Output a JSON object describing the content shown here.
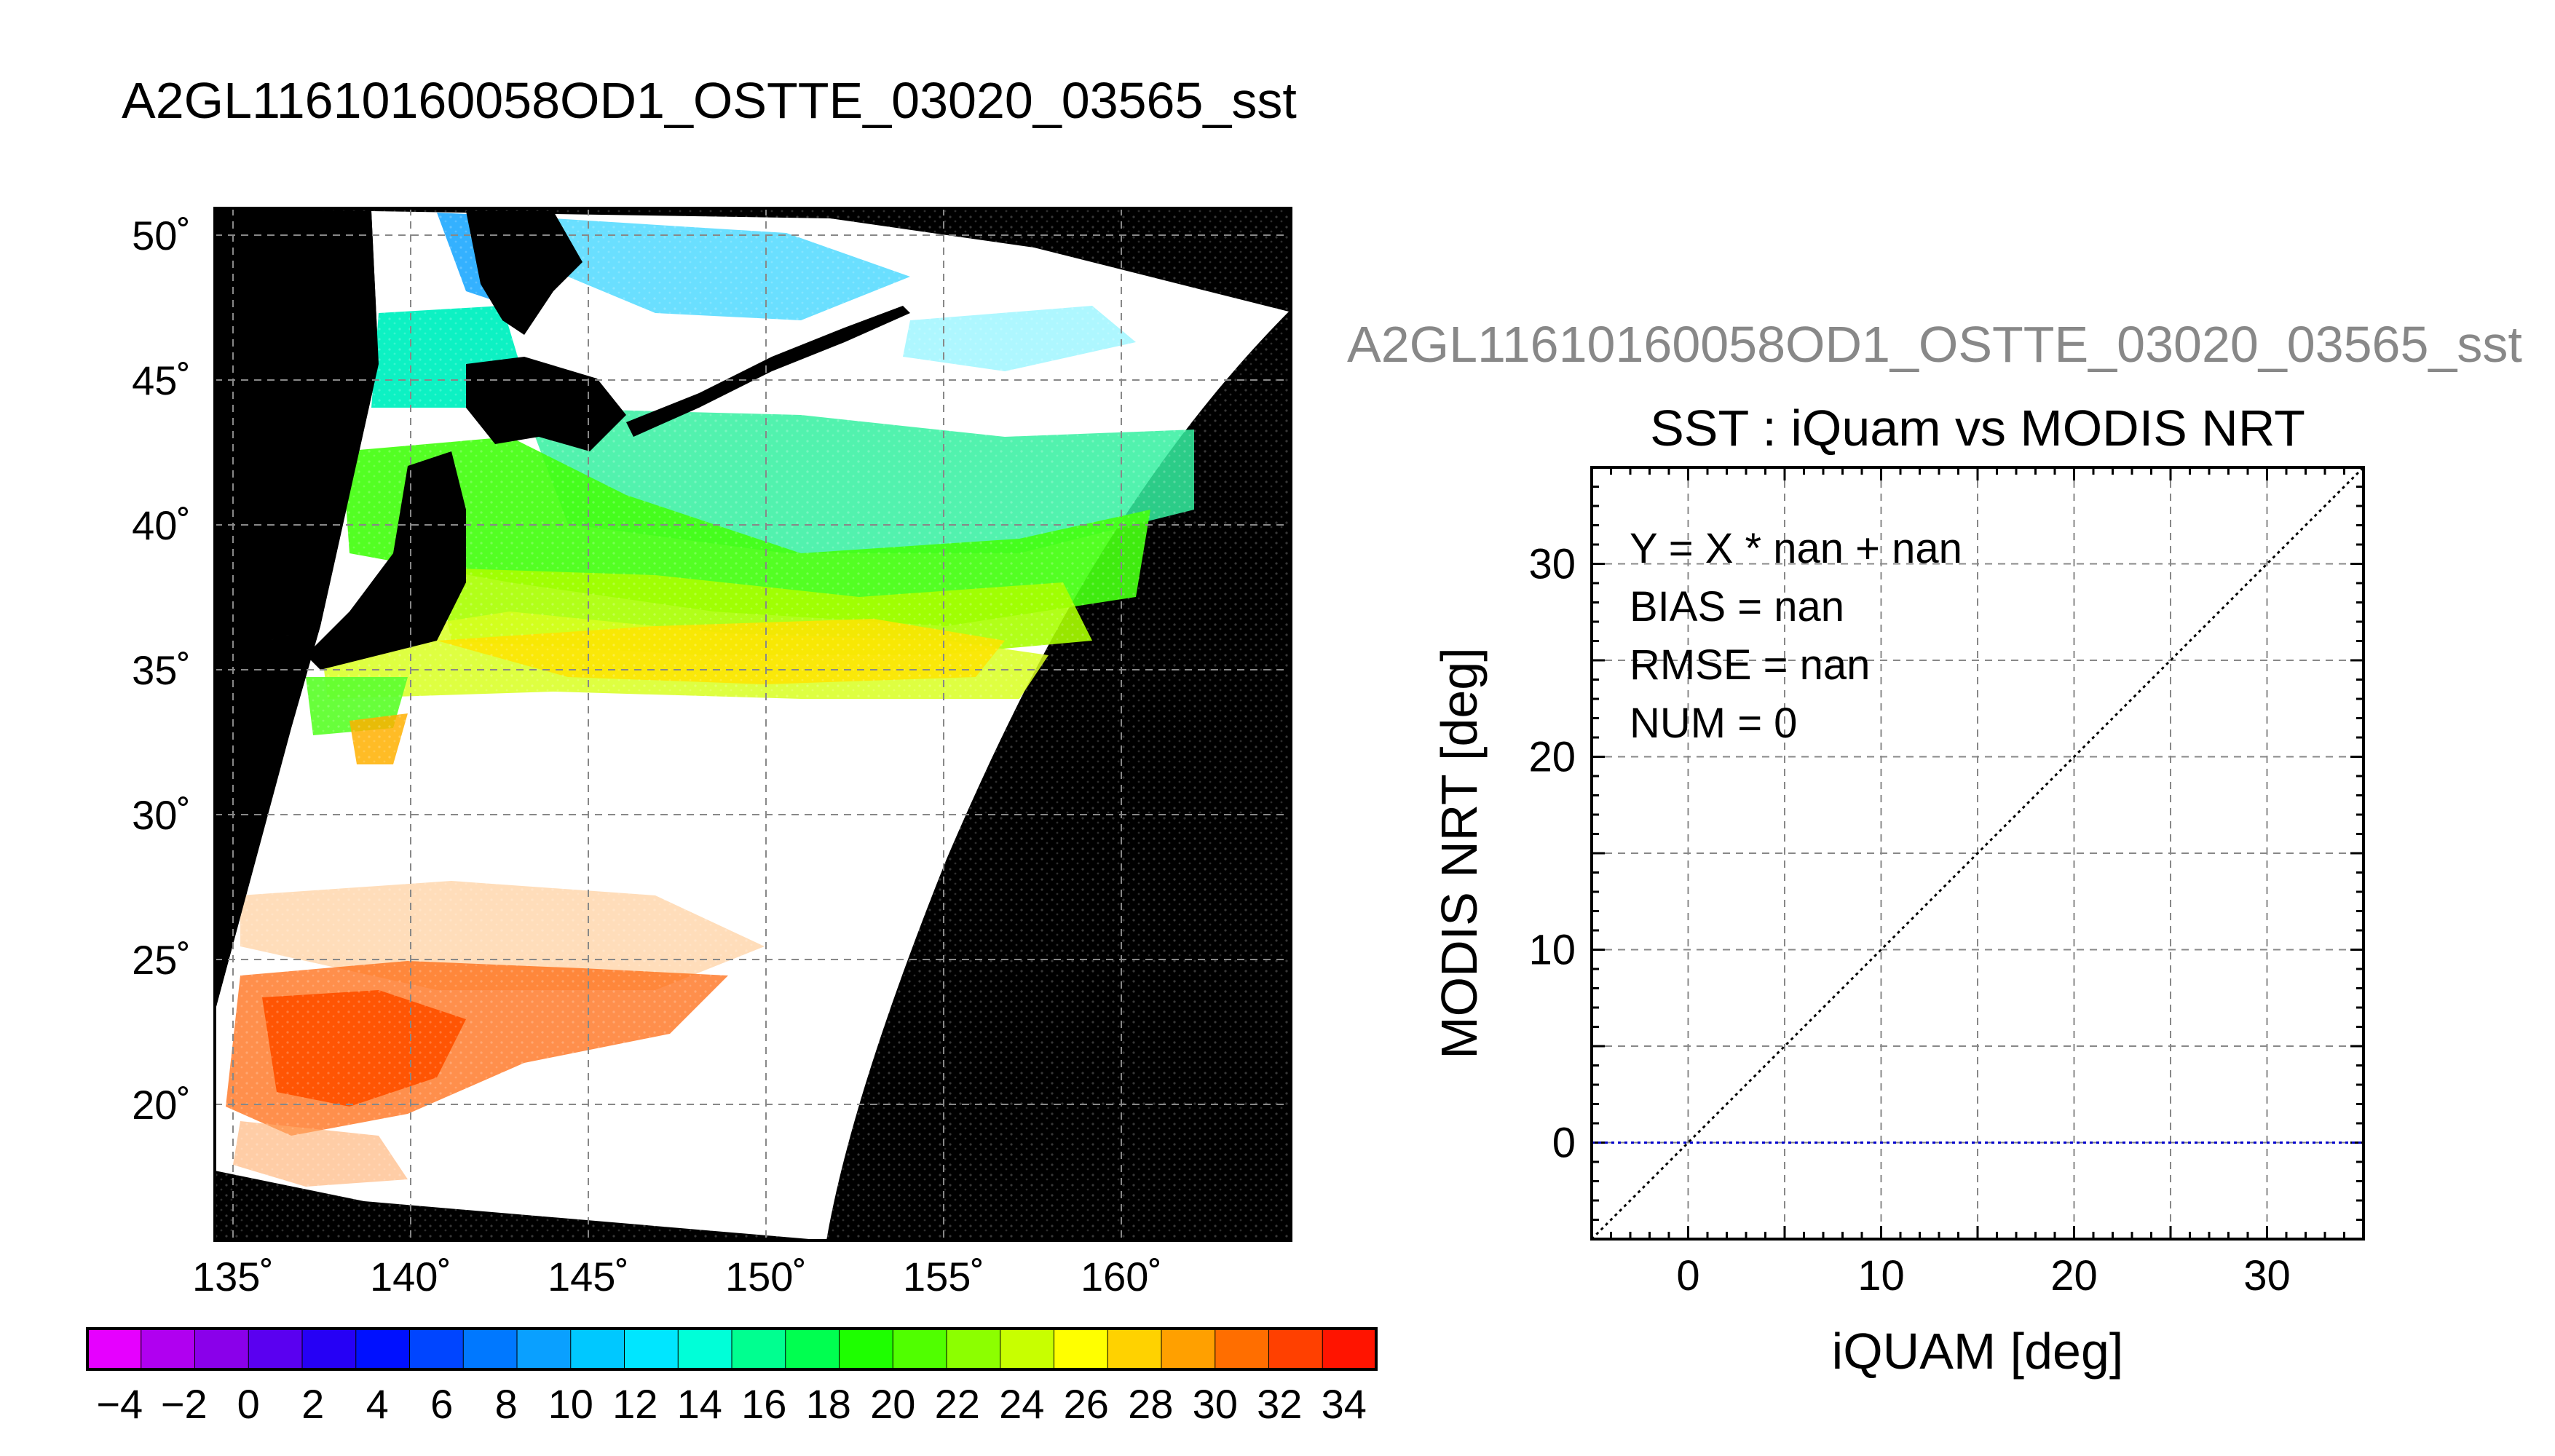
{
  "main_title": "A2GL11610160058OD1_OSTTE_03020_03565_sst",
  "map": {
    "lat_ticks": [
      "50˚",
      "45˚",
      "40˚",
      "35˚",
      "30˚",
      "25˚",
      "20˚"
    ],
    "lon_ticks": [
      "135˚",
      "140˚",
      "145˚",
      "150˚",
      "155˚",
      "160˚"
    ],
    "lat_values": [
      50,
      45,
      40,
      35,
      30,
      25,
      20
    ],
    "lon_values": [
      135,
      140,
      145,
      150,
      155,
      160
    ]
  },
  "colorbar": {
    "labels": [
      "−4",
      "−2",
      "0",
      "2",
      "4",
      "6",
      "8",
      "10",
      "12",
      "14",
      "16",
      "18",
      "20",
      "22",
      "24",
      "26",
      "28",
      "30",
      "32",
      "34"
    ],
    "values": [
      -4,
      -2,
      0,
      2,
      4,
      6,
      8,
      10,
      12,
      14,
      16,
      18,
      20,
      22,
      24,
      26,
      28,
      30,
      32,
      34
    ],
    "range": [
      -5,
      35
    ],
    "colors": [
      "#e600ff",
      "#b000f0",
      "#8a00ea",
      "#5a00f0",
      "#2600f5",
      "#0010ff",
      "#0045ff",
      "#0078ff",
      "#0aa0ff",
      "#00c8ff",
      "#00e6ff",
      "#00ffd8",
      "#00ff90",
      "#00ff50",
      "#1eff00",
      "#50ff00",
      "#8cff00",
      "#c8ff00",
      "#ffff00",
      "#ffd200",
      "#ffa000",
      "#ff6e00",
      "#ff4000",
      "#ff1400"
    ]
  },
  "scatter": {
    "header": "A2GL11610160058OD1_OSTTE_03020_03565_sst",
    "title": "SST : iQuam vs MODIS NRT",
    "xlabel": "iQUAM [deg]",
    "ylabel": "MODIS NRT [deg]",
    "x_ticks": [
      "0",
      "10",
      "20",
      "30"
    ],
    "y_ticks": [
      "0",
      "10",
      "20",
      "30"
    ],
    "stats": {
      "equation": "Y = X * nan + nan",
      "bias": "BIAS = nan",
      "rmse": "RMSE = nan",
      "num": "NUM = 0"
    }
  },
  "chart_data": [
    {
      "type": "heatmap",
      "title": "A2GL11610160058OD1_OSTTE_03020_03565_sst",
      "xlabel": "",
      "ylabel": "",
      "xlim": [
        134,
        164
      ],
      "ylim": [
        15,
        51
      ],
      "x_ticks": [
        135,
        140,
        145,
        150,
        155,
        160
      ],
      "y_ticks": [
        20,
        25,
        30,
        35,
        40,
        45,
        50
      ],
      "colorbar_range": [
        -5,
        35
      ],
      "colorbar_ticks": [
        -4,
        -2,
        0,
        2,
        4,
        6,
        8,
        10,
        12,
        14,
        16,
        18,
        20,
        22,
        24,
        26,
        28,
        30,
        32,
        34
      ],
      "grid": true
    },
    {
      "type": "scatter",
      "title": "SST : iQuam vs MODIS NRT",
      "xlabel": "iQUAM [deg]",
      "ylabel": "MODIS NRT [deg]",
      "xlim": [
        -5,
        35
      ],
      "ylim": [
        -5,
        35
      ],
      "x_ticks": [
        0,
        10,
        20,
        30
      ],
      "y_ticks": [
        0,
        10,
        20,
        30
      ],
      "points": [],
      "lines": [
        {
          "x": [
            -5,
            35
          ],
          "y": [
            -5,
            35
          ],
          "style": "dotted",
          "color": "#000000"
        },
        {
          "x": [
            -5,
            35
          ],
          "y": [
            0,
            0
          ],
          "style": "dotted",
          "color": "#0000cc"
        }
      ],
      "annotations": [
        "Y = X * nan + nan",
        "BIAS = nan",
        "RMSE = nan",
        "NUM = 0"
      ],
      "grid": true
    }
  ]
}
